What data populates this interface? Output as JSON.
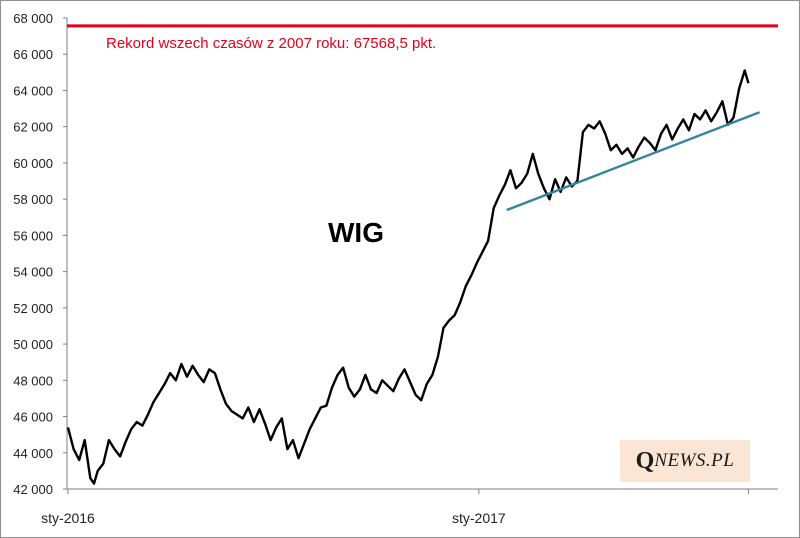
{
  "chart_data": {
    "type": "line",
    "title": "WIG",
    "xlabel": "",
    "ylabel": "",
    "ylim": [
      42000,
      68000
    ],
    "y_ticks": [
      "42 000",
      "44 000",
      "46 000",
      "48 000",
      "50 000",
      "52 000",
      "54 000",
      "56 000",
      "58 000",
      "60 000",
      "62 000",
      "64 000",
      "66 000",
      "68 000"
    ],
    "x_ticks": [
      "sty-2016",
      "sty-2017"
    ],
    "grid": false,
    "record_line": {
      "value": 67568.5,
      "label": "Rekord wszech czasów z 2007 roku: 67568,5 pkt.",
      "color": "#e3001b"
    },
    "trendline": {
      "start": {
        "day": 236,
        "value": 57400
      },
      "end": {
        "day": 372,
        "value": 62800
      },
      "color": "#31859c"
    },
    "series": [
      {
        "color": "#000000",
        "x_start": "2016-01-04",
        "x_end": "2017-05-10",
        "points": [
          [
            0,
            45400
          ],
          [
            3,
            44200
          ],
          [
            6,
            43600
          ],
          [
            9,
            44700
          ],
          [
            12,
            42600
          ],
          [
            14,
            42300
          ],
          [
            16,
            43000
          ],
          [
            19,
            43400
          ],
          [
            22,
            44700
          ],
          [
            25,
            44200
          ],
          [
            28,
            43800
          ],
          [
            31,
            44600
          ],
          [
            34,
            45300
          ],
          [
            37,
            45700
          ],
          [
            40,
            45500
          ],
          [
            43,
            46100
          ],
          [
            46,
            46800
          ],
          [
            49,
            47300
          ],
          [
            52,
            47800
          ],
          [
            55,
            48400
          ],
          [
            58,
            48000
          ],
          [
            61,
            48900
          ],
          [
            64,
            48200
          ],
          [
            67,
            48800
          ],
          [
            70,
            48300
          ],
          [
            73,
            47900
          ],
          [
            76,
            48600
          ],
          [
            79,
            48400
          ],
          [
            82,
            47500
          ],
          [
            85,
            46700
          ],
          [
            88,
            46300
          ],
          [
            91,
            46100
          ],
          [
            94,
            45900
          ],
          [
            97,
            46500
          ],
          [
            100,
            45700
          ],
          [
            103,
            46400
          ],
          [
            106,
            45600
          ],
          [
            109,
            44700
          ],
          [
            112,
            45400
          ],
          [
            115,
            45900
          ],
          [
            118,
            44200
          ],
          [
            121,
            44700
          ],
          [
            124,
            43700
          ],
          [
            127,
            44500
          ],
          [
            130,
            45300
          ],
          [
            133,
            45900
          ],
          [
            136,
            46500
          ],
          [
            139,
            46600
          ],
          [
            142,
            47600
          ],
          [
            145,
            48300
          ],
          [
            148,
            48700
          ],
          [
            151,
            47600
          ],
          [
            154,
            47100
          ],
          [
            157,
            47500
          ],
          [
            160,
            48300
          ],
          [
            163,
            47500
          ],
          [
            166,
            47300
          ],
          [
            169,
            48000
          ],
          [
            172,
            47700
          ],
          [
            175,
            47400
          ],
          [
            178,
            48100
          ],
          [
            181,
            48600
          ],
          [
            184,
            47900
          ],
          [
            187,
            47200
          ],
          [
            190,
            46900
          ],
          [
            193,
            47800
          ],
          [
            196,
            48300
          ],
          [
            199,
            49300
          ],
          [
            202,
            50900
          ],
          [
            205,
            51300
          ],
          [
            208,
            51600
          ],
          [
            211,
            52300
          ],
          [
            214,
            53200
          ],
          [
            217,
            53800
          ],
          [
            220,
            54500
          ],
          [
            223,
            55100
          ],
          [
            226,
            55700
          ],
          [
            229,
            57500
          ],
          [
            232,
            58200
          ],
          [
            235,
            58800
          ],
          [
            238,
            59600
          ],
          [
            241,
            58600
          ],
          [
            244,
            58900
          ],
          [
            247,
            59400
          ],
          [
            250,
            60500
          ],
          [
            253,
            59400
          ],
          [
            256,
            58600
          ],
          [
            259,
            58000
          ],
          [
            262,
            59100
          ],
          [
            265,
            58400
          ],
          [
            268,
            59200
          ],
          [
            271,
            58700
          ],
          [
            274,
            59000
          ],
          [
            277,
            61700
          ],
          [
            280,
            62100
          ],
          [
            283,
            61900
          ],
          [
            286,
            62300
          ],
          [
            289,
            61600
          ],
          [
            292,
            60700
          ],
          [
            295,
            61000
          ],
          [
            298,
            60500
          ],
          [
            301,
            60800
          ],
          [
            304,
            60300
          ],
          [
            307,
            60900
          ],
          [
            310,
            61400
          ],
          [
            313,
            61100
          ],
          [
            316,
            60700
          ],
          [
            319,
            61600
          ],
          [
            322,
            62100
          ],
          [
            325,
            61300
          ],
          [
            328,
            61900
          ],
          [
            331,
            62400
          ],
          [
            334,
            61800
          ],
          [
            337,
            62700
          ],
          [
            340,
            62400
          ],
          [
            343,
            62900
          ],
          [
            346,
            62300
          ],
          [
            349,
            62800
          ],
          [
            352,
            63400
          ],
          [
            355,
            62100
          ],
          [
            358,
            62500
          ],
          [
            361,
            64100
          ],
          [
            364,
            65100
          ],
          [
            366,
            64400
          ]
        ]
      }
    ]
  }
}
